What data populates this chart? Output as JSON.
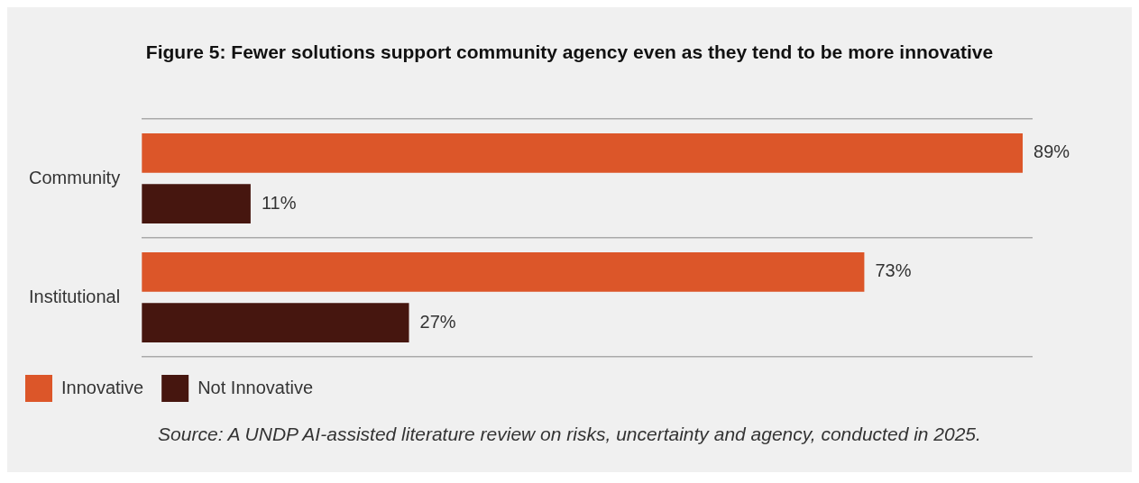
{
  "chart_data": {
    "type": "bar",
    "orientation": "horizontal",
    "title": "Figure 5: Fewer solutions support community agency even as they tend to be more innovative",
    "categories": [
      "Community",
      "Institutional"
    ],
    "series": [
      {
        "name": "Innovative",
        "color": "#dc5629",
        "values": [
          89,
          73
        ],
        "value_labels": [
          "89%",
          "73%"
        ]
      },
      {
        "name": "Not Innovative",
        "color": "#46160f",
        "values": [
          11,
          27
        ],
        "value_labels": [
          "11%",
          "27%"
        ]
      }
    ],
    "grid": "y",
    "legend": "bottom left",
    "tick_labels": "y",
    "annotations": [
      "Source: A UNDP AI-assisted literature review on risks, uncertainty and agency, conducted in 2025."
    ]
  }
}
